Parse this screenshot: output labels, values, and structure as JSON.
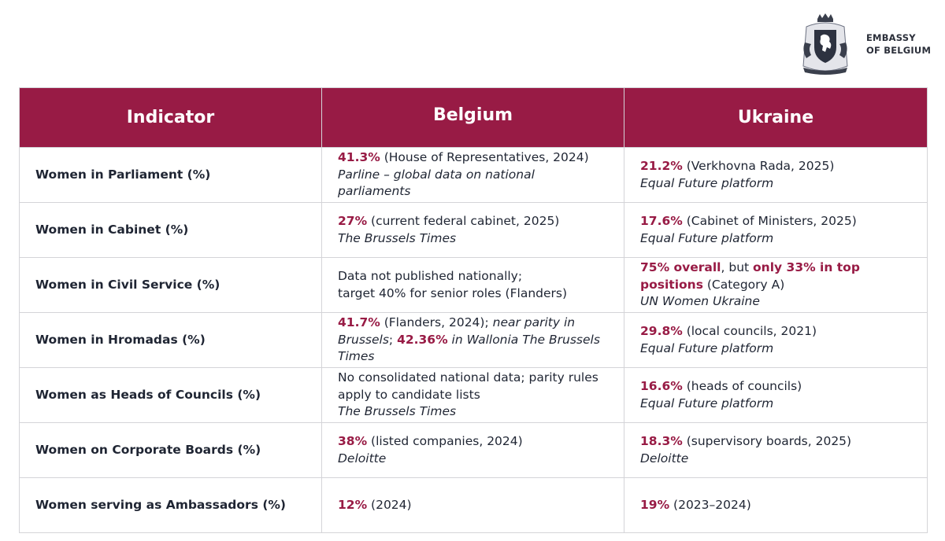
{
  "header": {
    "logo_line1": "EMBASSY",
    "logo_line2": "OF BELGIUM"
  },
  "colors": {
    "accent": "#981b45",
    "text": "#1f2533",
    "border": "#d4d4d8"
  },
  "table": {
    "columns": [
      "Indicator",
      "Belgium",
      "Ukraine"
    ],
    "rows": [
      {
        "indicator": "Women in Parliament (%)",
        "be_value": "41.3%",
        "be_text": " (House of Representatives, 2024)",
        "be_source": "Parline – global data on national parliaments",
        "ua_value": "21.2%",
        "ua_text": " (Verkhovna Rada, 2025)",
        "ua_source": "Equal Future platform"
      },
      {
        "indicator": "Women in Cabinet (%)",
        "be_value": "27%",
        "be_text": " (current federal cabinet, 2025)",
        "be_source": "The Brussels Times",
        "ua_value": "17.6%",
        "ua_text": " (Cabinet of Ministers, 2025)",
        "ua_source": "Equal Future platform"
      },
      {
        "indicator": "Women in Civil Service (%)",
        "be_line1": "Data not published nationally;",
        "be_line2": "target 40% for senior roles (Flanders)",
        "ua_value1": "75% overall",
        "ua_text1": ", but ",
        "ua_value2": "only 33% in top positions",
        "ua_text2": " (Category A)",
        "ua_source": "UN Women Ukraine"
      },
      {
        "indicator": "Women in Hromadas (%)",
        "be_value1": "41.7%",
        "be_text1": " (Flanders, 2024); ",
        "be_italic1": "near parity in Brussels",
        "be_text2": "; ",
        "be_value2": "42.36%",
        "be_italic2": " in Wallonia The Brussels Times",
        "ua_value": "29.8%",
        "ua_text": " (local councils, 2021)",
        "ua_source": "Equal Future platform"
      },
      {
        "indicator": "Women as Heads of Councils (%)",
        "be_text": "No consolidated national data; parity rules apply to candidate lists",
        "be_source": "The Brussels Times",
        "ua_value": "16.6%",
        "ua_text": " (heads of councils)",
        "ua_source": "Equal Future platform"
      },
      {
        "indicator": "Women on Corporate Boards (%)",
        "be_value": "38%",
        "be_text": " (listed companies, 2024)",
        "be_source": "Deloitte",
        "ua_value": "18.3%",
        "ua_text": " (supervisory boards, 2025)",
        "ua_source": "Deloitte"
      },
      {
        "indicator": "Women serving as Ambassadors (%)",
        "be_value": "12%",
        "be_text": " (2024)",
        "ua_value": "19%",
        "ua_text": " (2023–2024)"
      }
    ]
  }
}
